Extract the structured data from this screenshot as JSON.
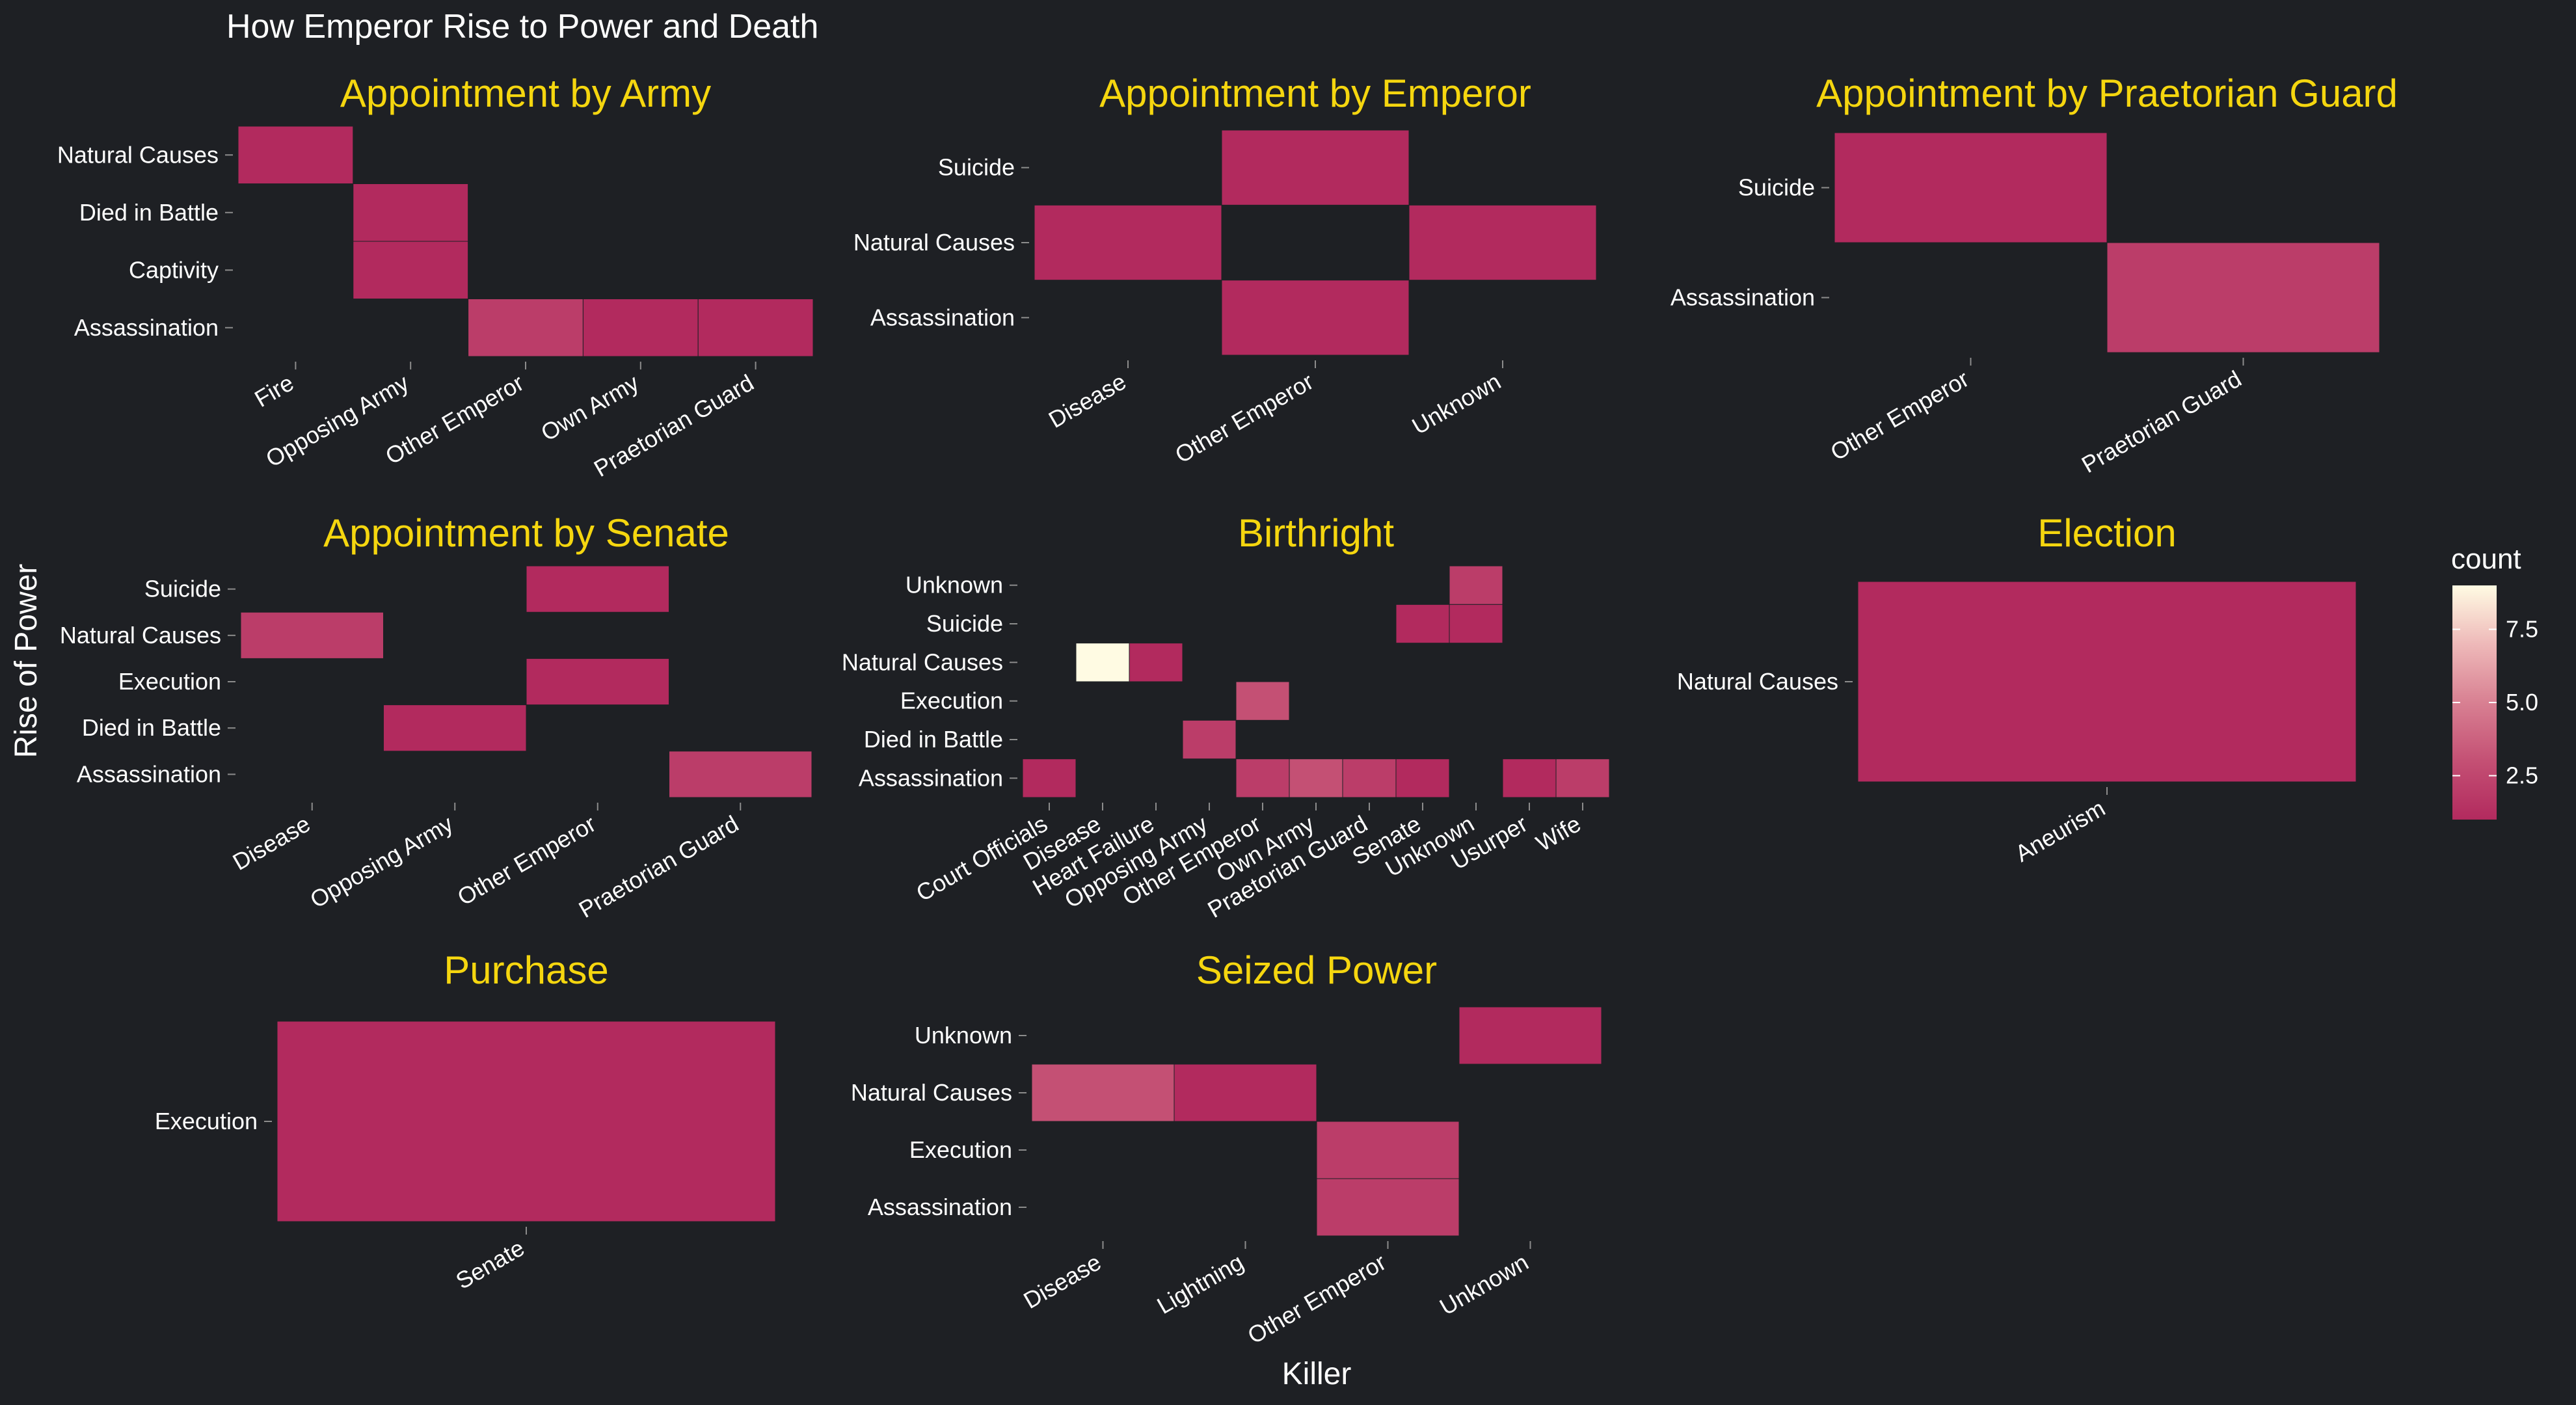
{
  "chart_data": {
    "type": "heatmap",
    "title": "How Emperor Rise to Power and Death",
    "xlabel": "Killer",
    "ylabel": "Rise of Power",
    "colors": {
      "background": "#1e2024",
      "low": "#b22a5e",
      "high": "#fffbe3",
      "strip_text": "#f5d60f",
      "text": "#ffffff"
    },
    "legend": {
      "title": "count",
      "ticks": [
        "2.5",
        "5.0",
        "7.5"
      ],
      "position": "right",
      "range": [
        1,
        9
      ]
    },
    "panels": [
      {
        "name": "Appointment by Army",
        "x": [
          "Fire",
          "Opposing Army",
          "Other Emperor",
          "Own Army",
          "Praetorian Guard"
        ],
        "y": [
          "Natural Causes",
          "Died in Battle",
          "Captivity",
          "Assassination"
        ],
        "cells": [
          {
            "x": "Fire",
            "y": "Natural Causes",
            "count": 1
          },
          {
            "x": "Opposing Army",
            "y": "Died in Battle",
            "count": 1
          },
          {
            "x": "Opposing Army",
            "y": "Captivity",
            "count": 1
          },
          {
            "x": "Other Emperor",
            "y": "Assassination",
            "count": 2
          },
          {
            "x": "Own Army",
            "y": "Assassination",
            "count": 1
          },
          {
            "x": "Praetorian Guard",
            "y": "Assassination",
            "count": 1
          }
        ]
      },
      {
        "name": "Appointment by Emperor",
        "x": [
          "Disease",
          "Other Emperor",
          "Unknown"
        ],
        "y": [
          "Suicide",
          "Natural Causes",
          "Assassination"
        ],
        "cells": [
          {
            "x": "Other Emperor",
            "y": "Suicide",
            "count": 1
          },
          {
            "x": "Disease",
            "y": "Natural Causes",
            "count": 1
          },
          {
            "x": "Unknown",
            "y": "Natural Causes",
            "count": 1
          },
          {
            "x": "Other Emperor",
            "y": "Assassination",
            "count": 1
          }
        ]
      },
      {
        "name": "Appointment by Praetorian Guard",
        "x": [
          "Other Emperor",
          "Praetorian Guard"
        ],
        "y": [
          "Suicide",
          "Assassination"
        ],
        "cells": [
          {
            "x": "Other Emperor",
            "y": "Suicide",
            "count": 1
          },
          {
            "x": "Praetorian Guard",
            "y": "Assassination",
            "count": 2
          }
        ]
      },
      {
        "name": "Appointment by Senate",
        "x": [
          "Disease",
          "Opposing Army",
          "Other Emperor",
          "Praetorian Guard"
        ],
        "y": [
          "Suicide",
          "Natural Causes",
          "Execution",
          "Died in Battle",
          "Assassination"
        ],
        "cells": [
          {
            "x": "Other Emperor",
            "y": "Suicide",
            "count": 1
          },
          {
            "x": "Disease",
            "y": "Natural Causes",
            "count": 2
          },
          {
            "x": "Other Emperor",
            "y": "Execution",
            "count": 1
          },
          {
            "x": "Opposing Army",
            "y": "Died in Battle",
            "count": 1
          },
          {
            "x": "Praetorian Guard",
            "y": "Assassination",
            "count": 2
          }
        ]
      },
      {
        "name": "Birthright",
        "x": [
          "Court Officials",
          "Disease",
          "Heart Failure",
          "Opposing Army",
          "Other Emperor",
          "Own Army",
          "Praetorian Guard",
          "Senate",
          "Unknown",
          "Usurper",
          "Wife"
        ],
        "y": [
          "Unknown",
          "Suicide",
          "Natural Causes",
          "Execution",
          "Died in Battle",
          "Assassination"
        ],
        "cells": [
          {
            "x": "Unknown",
            "y": "Unknown",
            "count": 2
          },
          {
            "x": "Senate",
            "y": "Suicide",
            "count": 1
          },
          {
            "x": "Unknown",
            "y": "Suicide",
            "count": 1
          },
          {
            "x": "Disease",
            "y": "Natural Causes",
            "count": 9
          },
          {
            "x": "Heart Failure",
            "y": "Natural Causes",
            "count": 1
          },
          {
            "x": "Other Emperor",
            "y": "Execution",
            "count": 3
          },
          {
            "x": "Opposing Army",
            "y": "Died in Battle",
            "count": 2
          },
          {
            "x": "Court Officials",
            "y": "Assassination",
            "count": 1
          },
          {
            "x": "Other Emperor",
            "y": "Assassination",
            "count": 2
          },
          {
            "x": "Own Army",
            "y": "Assassination",
            "count": 3
          },
          {
            "x": "Praetorian Guard",
            "y": "Assassination",
            "count": 2
          },
          {
            "x": "Senate",
            "y": "Assassination",
            "count": 1
          },
          {
            "x": "Usurper",
            "y": "Assassination",
            "count": 1
          },
          {
            "x": "Wife",
            "y": "Assassination",
            "count": 2
          }
        ]
      },
      {
        "name": "Election",
        "x": [
          "Aneurism"
        ],
        "y": [
          "Natural Causes"
        ],
        "cells": [
          {
            "x": "Aneurism",
            "y": "Natural Causes",
            "count": 1
          }
        ]
      },
      {
        "name": "Purchase",
        "x": [
          "Senate"
        ],
        "y": [
          "Execution"
        ],
        "cells": [
          {
            "x": "Senate",
            "y": "Execution",
            "count": 1
          }
        ]
      },
      {
        "name": "Seized Power",
        "x": [
          "Disease",
          "Lightning",
          "Other Emperor",
          "Unknown"
        ],
        "y": [
          "Unknown",
          "Natural Causes",
          "Execution",
          "Assassination"
        ],
        "cells": [
          {
            "x": "Unknown",
            "y": "Unknown",
            "count": 1
          },
          {
            "x": "Disease",
            "y": "Natural Causes",
            "count": 3
          },
          {
            "x": "Lightning",
            "y": "Natural Causes",
            "count": 1
          },
          {
            "x": "Other Emperor",
            "y": "Execution",
            "count": 2
          },
          {
            "x": "Other Emperor",
            "y": "Assassination",
            "count": 2
          }
        ]
      }
    ]
  }
}
